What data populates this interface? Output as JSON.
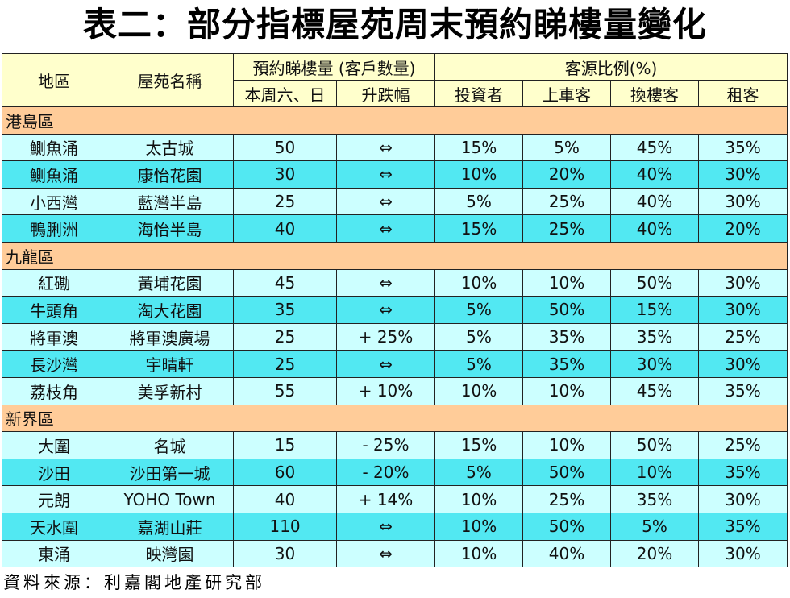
{
  "title": "表二：部分指標屋苑周末預約睇樓量變化",
  "headers": {
    "district": "地區",
    "estate": "屋苑名稱",
    "viewings_group": "預約睇樓量 (客戶數量)",
    "this_weekend": "本周六、日",
    "change": "升跌幅",
    "source_group": "客源比例(%)",
    "investor": "投資者",
    "first_buyer": "上車客",
    "upgrader": "換樓客",
    "tenant": "租客"
  },
  "colors": {
    "header": "#FFFFCC",
    "region": "#FFCC99",
    "row_light": "#CCFFFF",
    "row_dark": "#52E8F2"
  },
  "regions": [
    {
      "name": "港島區",
      "rows": [
        {
          "district": "鰂魚涌",
          "estate": "太古城",
          "count": "50",
          "change": "⇔",
          "investor": "15%",
          "first_buyer": "5%",
          "upgrader": "45%",
          "tenant": "35%",
          "shade": "light"
        },
        {
          "district": "鰂魚涌",
          "estate": "康怡花園",
          "count": "30",
          "change": "⇔",
          "investor": "10%",
          "first_buyer": "20%",
          "upgrader": "40%",
          "tenant": "30%",
          "shade": "dark"
        },
        {
          "district": "小西灣",
          "estate": "藍灣半島",
          "count": "25",
          "change": "⇔",
          "investor": "5%",
          "first_buyer": "25%",
          "upgrader": "40%",
          "tenant": "30%",
          "shade": "light"
        },
        {
          "district": "鴨脷洲",
          "estate": "海怡半島",
          "count": "40",
          "change": "⇔",
          "investor": "15%",
          "first_buyer": "25%",
          "upgrader": "40%",
          "tenant": "20%",
          "shade": "dark"
        }
      ]
    },
    {
      "name": "九龍區",
      "rows": [
        {
          "district": "紅磡",
          "estate": "黃埔花園",
          "count": "45",
          "change": "⇔",
          "investor": "10%",
          "first_buyer": "10%",
          "upgrader": "50%",
          "tenant": "30%",
          "shade": "light"
        },
        {
          "district": "牛頭角",
          "estate": "淘大花園",
          "count": "35",
          "change": "⇔",
          "investor": "5%",
          "first_buyer": "50%",
          "upgrader": "15%",
          "tenant": "30%",
          "shade": "dark"
        },
        {
          "district": "將軍澳",
          "estate": "將軍澳廣場",
          "count": "25",
          "change": "+ 25%",
          "investor": "5%",
          "first_buyer": "35%",
          "upgrader": "35%",
          "tenant": "25%",
          "shade": "light"
        },
        {
          "district": "長沙灣",
          "estate": "宇晴軒",
          "count": "25",
          "change": "⇔",
          "investor": "5%",
          "first_buyer": "35%",
          "upgrader": "30%",
          "tenant": "30%",
          "shade": "dark"
        },
        {
          "district": "荔枝角",
          "estate": "美孚新村",
          "count": "55",
          "change": "+ 10%",
          "investor": "10%",
          "first_buyer": "10%",
          "upgrader": "45%",
          "tenant": "35%",
          "shade": "light"
        }
      ]
    },
    {
      "name": "新界區",
      "rows": [
        {
          "district": "大圍",
          "estate": "名城",
          "count": "15",
          "change": "- 25%",
          "investor": "15%",
          "first_buyer": "10%",
          "upgrader": "50%",
          "tenant": "25%",
          "shade": "light"
        },
        {
          "district": "沙田",
          "estate": "沙田第一城",
          "count": "60",
          "change": "- 20%",
          "investor": "5%",
          "first_buyer": "50%",
          "upgrader": "10%",
          "tenant": "35%",
          "shade": "dark"
        },
        {
          "district": "元朗",
          "estate": "YOHO Town",
          "count": "40",
          "change": "+ 14%",
          "investor": "10%",
          "first_buyer": "25%",
          "upgrader": "35%",
          "tenant": "30%",
          "shade": "light"
        },
        {
          "district": "天水圍",
          "estate": "嘉湖山莊",
          "count": "110",
          "change": "⇔",
          "investor": "10%",
          "first_buyer": "50%",
          "upgrader": "5%",
          "tenant": "35%",
          "shade": "dark"
        },
        {
          "district": "東涌",
          "estate": "映灣園",
          "count": "30",
          "change": "⇔",
          "investor": "10%",
          "first_buyer": "40%",
          "upgrader": "20%",
          "tenant": "30%",
          "shade": "light"
        }
      ]
    }
  ],
  "footer": "資料來源：利嘉閣地產研究部"
}
